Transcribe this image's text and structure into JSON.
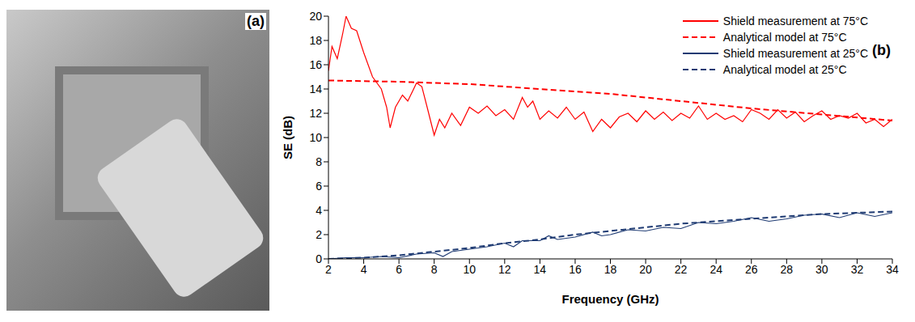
{
  "photo": {
    "label": "(a)"
  },
  "chart_data": {
    "type": "line",
    "annotation": "(b)",
    "x_label": "Frequency (GHz)",
    "y_label": "SE (dB)",
    "xlim": [
      2,
      34
    ],
    "xticks": [
      2,
      4,
      6,
      8,
      10,
      12,
      14,
      16,
      18,
      20,
      22,
      24,
      26,
      28,
      30,
      32,
      34
    ],
    "ylim": [
      0,
      20
    ],
    "yticks": [
      0,
      2,
      4,
      6,
      8,
      10,
      12,
      14,
      16,
      18,
      20
    ],
    "grid": false,
    "legend": "top-right",
    "series": [
      {
        "name": "Shield measurement at 75°C",
        "color": "#ff0000",
        "line_style": "solid",
        "x": [
          2,
          2.2,
          2.5,
          2.8,
          3.0,
          3.3,
          3.6,
          4.0,
          4.5,
          5.0,
          5.3,
          5.5,
          5.8,
          6.2,
          6.5,
          7.0,
          7.3,
          7.6,
          8.0,
          8.3,
          8.6,
          9,
          9.5,
          10,
          10.5,
          11,
          11.5,
          12,
          12.5,
          13,
          13.3,
          13.6,
          14,
          14.5,
          15,
          15.5,
          16,
          16.5,
          17,
          17.5,
          18,
          18.5,
          19,
          19.5,
          20,
          20.5,
          21,
          21.5,
          22,
          22.5,
          23,
          23.5,
          24,
          24.5,
          25,
          25.5,
          26,
          26.5,
          27,
          27.5,
          28,
          28.5,
          29,
          29.5,
          30,
          30.5,
          31,
          31.5,
          32,
          32.5,
          33,
          33.5,
          34
        ],
        "values": [
          15.5,
          17.5,
          16.5,
          18.5,
          20,
          19,
          18.8,
          17,
          15,
          14,
          12.5,
          10.8,
          12.5,
          13.5,
          13,
          14.5,
          14.2,
          12.5,
          10.2,
          11.5,
          10.8,
          12,
          11,
          12.5,
          12,
          12.6,
          11.8,
          12.3,
          11.5,
          13.3,
          12.5,
          13,
          11.5,
          12.2,
          11.6,
          12.5,
          11.5,
          12.1,
          10.5,
          11.5,
          10.8,
          11.7,
          12,
          11.3,
          12.2,
          11.5,
          12.1,
          11.4,
          12,
          11.6,
          12.6,
          11.5,
          12,
          11.5,
          11.8,
          11.3,
          12.3,
          12,
          11.5,
          12.3,
          11.6,
          12.1,
          11.3,
          11.8,
          12.2,
          11.5,
          11.8,
          11.6,
          12,
          11.2,
          11.5,
          10.9,
          11.5
        ]
      },
      {
        "name": "Analytical model at 75°C",
        "color": "#ff0000",
        "line_style": "dashed",
        "x": [
          2,
          6,
          10,
          14,
          18,
          22,
          26,
          30,
          34
        ],
        "values": [
          14.7,
          14.6,
          14.4,
          14.0,
          13.6,
          13.0,
          12.4,
          11.9,
          11.4
        ]
      },
      {
        "name": "Shield measurement at 25°C",
        "color": "#1f3b73",
        "line_style": "solid",
        "x": [
          2,
          3,
          4,
          5,
          6,
          7,
          8,
          8.5,
          9,
          10,
          11,
          12,
          12.5,
          13,
          14,
          14.5,
          15,
          16,
          17,
          17.5,
          18,
          19,
          20,
          21,
          22,
          23,
          24,
          25,
          26,
          27,
          28,
          29,
          30,
          31,
          32,
          33,
          34
        ],
        "values": [
          0,
          0.1,
          0.1,
          0.2,
          0.1,
          0.4,
          0.5,
          0.2,
          0.6,
          0.8,
          1.0,
          1.3,
          1.0,
          1.5,
          1.5,
          1.9,
          1.6,
          1.8,
          2.2,
          1.9,
          2.0,
          2.4,
          2.3,
          2.6,
          2.5,
          3.0,
          2.9,
          3.1,
          3.4,
          3.1,
          3.3,
          3.6,
          3.7,
          3.4,
          3.8,
          3.5,
          3.8
        ]
      },
      {
        "name": "Analytical model at 25°C",
        "color": "#1f3b73",
        "line_style": "dashed",
        "x": [
          2,
          4,
          6,
          8,
          10,
          12,
          14,
          16,
          18,
          20,
          22,
          24,
          26,
          28,
          30,
          32,
          34
        ],
        "values": [
          0,
          0.1,
          0.3,
          0.6,
          0.9,
          1.3,
          1.6,
          2.0,
          2.3,
          2.6,
          2.9,
          3.1,
          3.3,
          3.5,
          3.7,
          3.8,
          3.9
        ]
      }
    ]
  }
}
